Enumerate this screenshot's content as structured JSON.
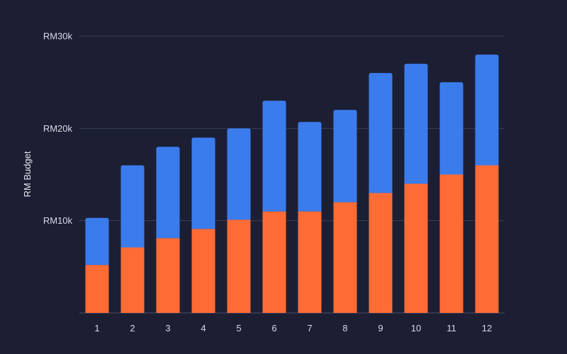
{
  "chart_data": {
    "type": "bar",
    "stacked": true,
    "title": "",
    "xlabel": "",
    "ylabel": "RM Budget",
    "ylim": [
      0,
      30000
    ],
    "yticks": [
      {
        "value": 10000,
        "label": "RM10k"
      },
      {
        "value": 20000,
        "label": "RM20k"
      },
      {
        "value": 30000,
        "label": "RM30k"
      }
    ],
    "grid": true,
    "legend": "none",
    "categories": [
      "1",
      "2",
      "3",
      "4",
      "5",
      "6",
      "7",
      "8",
      "9",
      "10",
      "11",
      "12"
    ],
    "series": [
      {
        "color": "#ff6b35",
        "values": [
          5200,
          7100,
          8100,
          9100,
          10100,
          11000,
          11000,
          12000,
          13000,
          14000,
          15000,
          16000
        ]
      },
      {
        "color": "#3b7ced",
        "values": [
          5100,
          8900,
          9900,
          9900,
          9900,
          12000,
          9700,
          10000,
          13000,
          13000,
          10000,
          12000
        ]
      }
    ]
  },
  "colors": {
    "background": "#1c1f33",
    "grid": "#3a3e56",
    "text": "#d6d9e6"
  }
}
